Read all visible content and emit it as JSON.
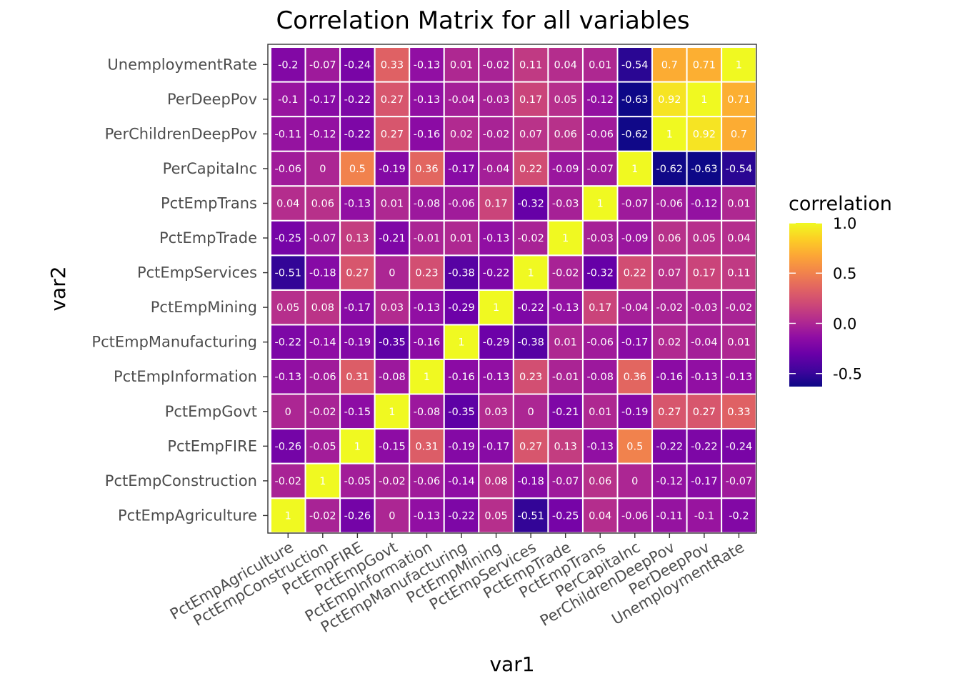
{
  "chart_data": {
    "type": "heatmap",
    "title": "Correlation Matrix for all variables",
    "xlabel": "var1",
    "ylabel": "var2",
    "categories": [
      "PctEmpAgriculture",
      "PctEmpConstruction",
      "PctEmpFIRE",
      "PctEmpGovt",
      "PctEmpInformation",
      "PctEmpManufacturing",
      "PctEmpMining",
      "PctEmpServices",
      "PctEmpTrade",
      "PctEmpTrans",
      "PerCapitaInc",
      "PerChildrenDeepPov",
      "PerDeepPov",
      "UnemploymentRate"
    ],
    "matrix": [
      [
        1,
        -0.02,
        -0.26,
        0,
        -0.13,
        -0.22,
        0.05,
        -0.51,
        -0.25,
        0.04,
        -0.06,
        -0.11,
        -0.1,
        -0.2
      ],
      [
        -0.02,
        1,
        -0.05,
        -0.02,
        -0.06,
        -0.14,
        0.08,
        -0.18,
        -0.07,
        0.06,
        0,
        -0.12,
        -0.17,
        -0.07
      ],
      [
        -0.26,
        -0.05,
        1,
        -0.15,
        0.31,
        -0.19,
        -0.17,
        0.27,
        0.13,
        -0.13,
        0.5,
        -0.22,
        -0.22,
        -0.24
      ],
      [
        0,
        -0.02,
        -0.15,
        1,
        -0.08,
        -0.35,
        0.03,
        0,
        -0.21,
        0.01,
        -0.19,
        0.27,
        0.27,
        0.33
      ],
      [
        -0.13,
        -0.06,
        0.31,
        -0.08,
        1,
        -0.16,
        -0.13,
        0.23,
        -0.01,
        -0.08,
        0.36,
        -0.16,
        -0.13,
        -0.13
      ],
      [
        -0.22,
        -0.14,
        -0.19,
        -0.35,
        -0.16,
        1,
        -0.29,
        -0.38,
        0.01,
        -0.06,
        -0.17,
        0.02,
        -0.04,
        0.01
      ],
      [
        0.05,
        0.08,
        -0.17,
        0.03,
        -0.13,
        -0.29,
        1,
        -0.22,
        -0.13,
        0.17,
        -0.04,
        -0.02,
        -0.03,
        -0.02
      ],
      [
        -0.51,
        -0.18,
        0.27,
        0,
        0.23,
        -0.38,
        -0.22,
        1,
        -0.02,
        -0.32,
        0.22,
        0.07,
        0.17,
        0.11
      ],
      [
        -0.25,
        -0.07,
        0.13,
        -0.21,
        -0.01,
        0.01,
        -0.13,
        -0.02,
        1,
        -0.03,
        -0.09,
        0.06,
        0.05,
        0.04
      ],
      [
        0.04,
        0.06,
        -0.13,
        0.01,
        -0.08,
        -0.06,
        0.17,
        -0.32,
        -0.03,
        1,
        -0.07,
        -0.06,
        -0.12,
        0.01
      ],
      [
        -0.06,
        0,
        0.5,
        -0.19,
        0.36,
        -0.17,
        -0.04,
        0.22,
        -0.09,
        -0.07,
        1,
        -0.62,
        -0.63,
        -0.54
      ],
      [
        -0.11,
        -0.12,
        -0.22,
        0.27,
        -0.16,
        0.02,
        -0.02,
        0.07,
        0.06,
        -0.06,
        -0.62,
        1,
        0.92,
        0.7
      ],
      [
        -0.1,
        -0.17,
        -0.22,
        0.27,
        -0.13,
        -0.04,
        -0.03,
        0.17,
        0.05,
        -0.12,
        -0.63,
        0.92,
        1,
        0.71
      ],
      [
        -0.2,
        -0.07,
        -0.24,
        0.33,
        -0.13,
        0.01,
        -0.02,
        0.11,
        0.04,
        0.01,
        -0.54,
        0.7,
        0.71,
        1
      ]
    ],
    "color_range": [
      -0.63,
      1
    ],
    "colormap": "plasma",
    "cell_border_color": "#ffffff",
    "legend": {
      "title": "correlation",
      "position": "right",
      "breaks": [
        1,
        0.5,
        0,
        -0.5
      ],
      "break_labels": [
        "1.0",
        "0.5",
        "0.0",
        "-0.5"
      ]
    }
  }
}
